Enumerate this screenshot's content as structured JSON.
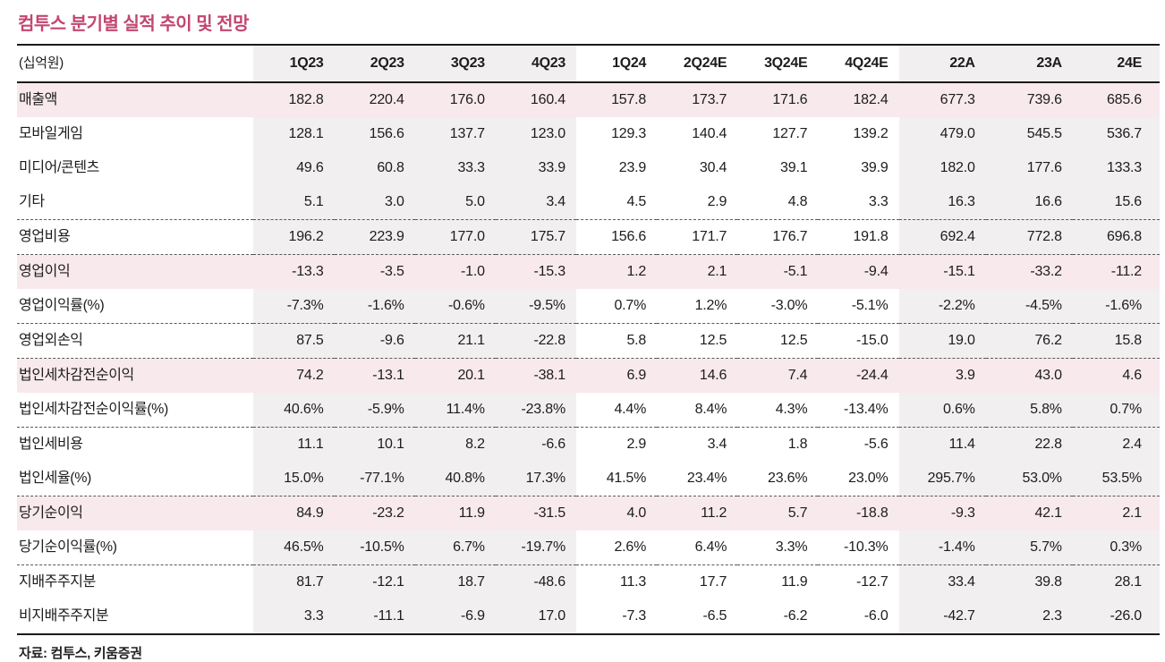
{
  "title": "컴투스 분기별 실적 추이 및 전망",
  "source": "자료: 컴투스, 키움증권",
  "colors": {
    "accent": "#c2476f",
    "highlight_row_bg": "#f8e9ed",
    "band_bg": "#f1eff0",
    "border_dark": "#1a1a1a",
    "text": "#1c1c1c"
  },
  "table": {
    "unit_label": "(십억원)",
    "columns": [
      "1Q23",
      "2Q23",
      "3Q23",
      "4Q23",
      "1Q24",
      "2Q24E",
      "3Q24E",
      "4Q24E",
      "22A",
      "23A",
      "24E"
    ],
    "banded_column_indexes": [
      0,
      1,
      2,
      3,
      8,
      9,
      10
    ],
    "rows": [
      {
        "label": "매출액",
        "highlight": true,
        "divider": false,
        "values": [
          "182.8",
          "220.4",
          "176.0",
          "160.4",
          "157.8",
          "173.7",
          "171.6",
          "182.4",
          "677.3",
          "739.6",
          "685.6"
        ]
      },
      {
        "label": "모바일게임",
        "highlight": false,
        "divider": false,
        "values": [
          "128.1",
          "156.6",
          "137.7",
          "123.0",
          "129.3",
          "140.4",
          "127.7",
          "139.2",
          "479.0",
          "545.5",
          "536.7"
        ]
      },
      {
        "label": "미디어/콘텐츠",
        "highlight": false,
        "divider": false,
        "values": [
          "49.6",
          "60.8",
          "33.3",
          "33.9",
          "23.9",
          "30.4",
          "39.1",
          "39.9",
          "182.0",
          "177.6",
          "133.3"
        ]
      },
      {
        "label": "기타",
        "highlight": false,
        "divider": false,
        "values": [
          "5.1",
          "3.0",
          "5.0",
          "3.4",
          "4.5",
          "2.9",
          "4.8",
          "3.3",
          "16.3",
          "16.6",
          "15.6"
        ]
      },
      {
        "label": "영업비용",
        "highlight": false,
        "divider": true,
        "values": [
          "196.2",
          "223.9",
          "177.0",
          "175.7",
          "156.6",
          "171.7",
          "176.7",
          "191.8",
          "692.4",
          "772.8",
          "696.8"
        ]
      },
      {
        "label": "영업이익",
        "highlight": true,
        "divider": true,
        "values": [
          "-13.3",
          "-3.5",
          "-1.0",
          "-15.3",
          "1.2",
          "2.1",
          "-5.1",
          "-9.4",
          "-15.1",
          "-33.2",
          "-11.2"
        ]
      },
      {
        "label": "영업이익률(%)",
        "highlight": false,
        "divider": false,
        "values": [
          "-7.3%",
          "-1.6%",
          "-0.6%",
          "-9.5%",
          "0.7%",
          "1.2%",
          "-3.0%",
          "-5.1%",
          "-2.2%",
          "-4.5%",
          "-1.6%"
        ]
      },
      {
        "label": "영업외손익",
        "highlight": false,
        "divider": true,
        "values": [
          "87.5",
          "-9.6",
          "21.1",
          "-22.8",
          "5.8",
          "12.5",
          "12.5",
          "-15.0",
          "19.0",
          "76.2",
          "15.8"
        ]
      },
      {
        "label": "법인세차감전순이익",
        "highlight": true,
        "divider": true,
        "values": [
          "74.2",
          "-13.1",
          "20.1",
          "-38.1",
          "6.9",
          "14.6",
          "7.4",
          "-24.4",
          "3.9",
          "43.0",
          "4.6"
        ]
      },
      {
        "label": "법인세차감전순이익률(%)",
        "highlight": false,
        "divider": false,
        "values": [
          "40.6%",
          "-5.9%",
          "11.4%",
          "-23.8%",
          "4.4%",
          "8.4%",
          "4.3%",
          "-13.4%",
          "0.6%",
          "5.8%",
          "0.7%"
        ]
      },
      {
        "label": "법인세비용",
        "highlight": false,
        "divider": true,
        "values": [
          "11.1",
          "10.1",
          "8.2",
          "-6.6",
          "2.9",
          "3.4",
          "1.8",
          "-5.6",
          "11.4",
          "22.8",
          "2.4"
        ]
      },
      {
        "label": "법인세율(%)",
        "highlight": false,
        "divider": false,
        "values": [
          "15.0%",
          "-77.1%",
          "40.8%",
          "17.3%",
          "41.5%",
          "23.4%",
          "23.6%",
          "23.0%",
          "295.7%",
          "53.0%",
          "53.5%"
        ]
      },
      {
        "label": "당기순이익",
        "highlight": true,
        "divider": true,
        "values": [
          "84.9",
          "-23.2",
          "11.9",
          "-31.5",
          "4.0",
          "11.2",
          "5.7",
          "-18.8",
          "-9.3",
          "42.1",
          "2.1"
        ]
      },
      {
        "label": "당기순이익률(%)",
        "highlight": false,
        "divider": false,
        "values": [
          "46.5%",
          "-10.5%",
          "6.7%",
          "-19.7%",
          "2.6%",
          "6.4%",
          "3.3%",
          "-10.3%",
          "-1.4%",
          "5.7%",
          "0.3%"
        ]
      },
      {
        "label": "지배주주지분",
        "highlight": false,
        "divider": true,
        "values": [
          "81.7",
          "-12.1",
          "18.7",
          "-48.6",
          "11.3",
          "17.7",
          "11.9",
          "-12.7",
          "33.4",
          "39.8",
          "28.1"
        ]
      },
      {
        "label": "비지배주주지분",
        "highlight": false,
        "divider": false,
        "values": [
          "3.3",
          "-11.1",
          "-6.9",
          "17.0",
          "-7.3",
          "-6.5",
          "-6.2",
          "-6.0",
          "-42.7",
          "2.3",
          "-26.0"
        ]
      }
    ]
  }
}
